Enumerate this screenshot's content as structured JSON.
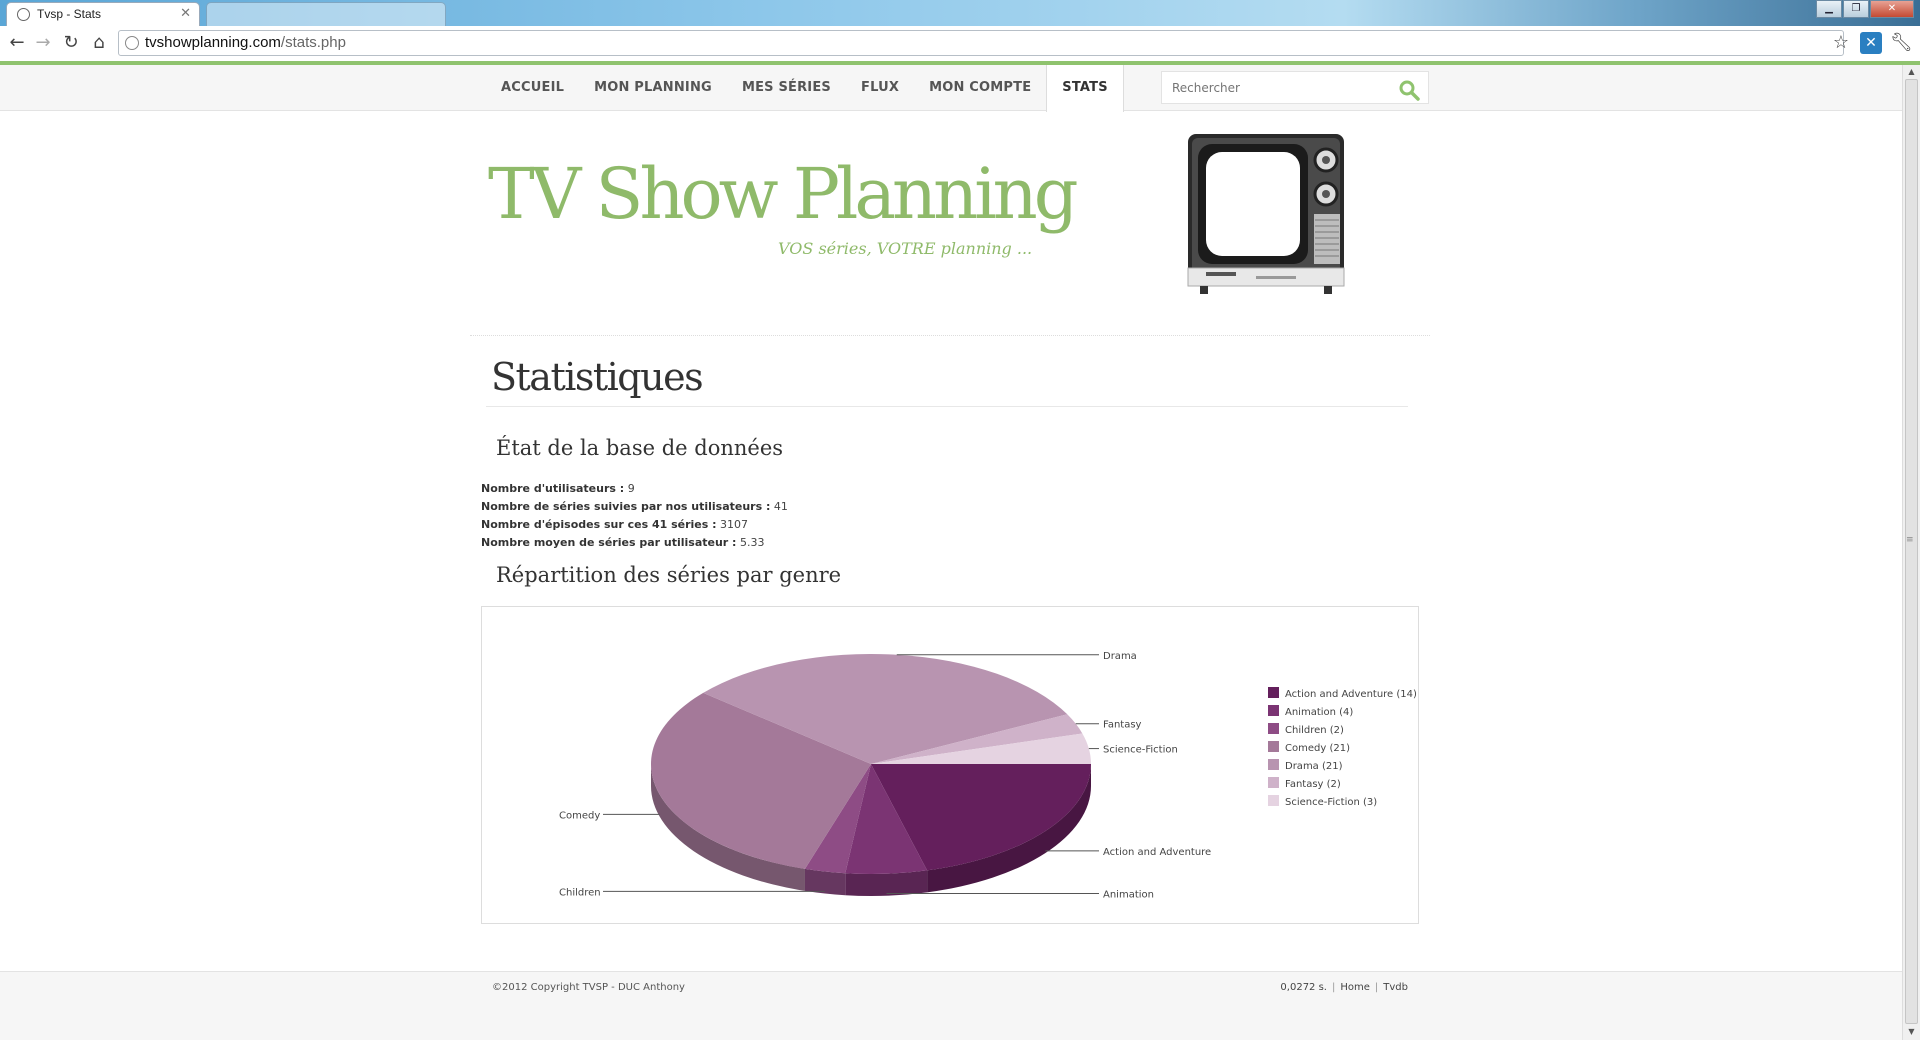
{
  "browser": {
    "tab_active_title": "Tvsp - Stats",
    "tab_inactive_title": "",
    "url_host": "tvshowplanning.com",
    "url_path": "/stats.php"
  },
  "nav": {
    "items": [
      "ACCUEIL",
      "MON PLANNING",
      "MES SÉRIES",
      "FLUX",
      "MON COMPTE",
      "STATS"
    ],
    "active": "STATS",
    "search_placeholder": "Rechercher"
  },
  "header": {
    "title": "TV Show Planning",
    "tagline": "VOS séries, VOTRE planning ..."
  },
  "page": {
    "title": "Statistiques",
    "db_section_title": "État de la base de données",
    "stats": [
      {
        "label": "Nombre d'utilisateurs :",
        "value": "9"
      },
      {
        "label": "Nombre de séries suivies par nos utilisateurs :",
        "value": "41"
      },
      {
        "label": "Nombre d'épisodes sur ces 41 séries :",
        "value": "3107"
      },
      {
        "label": "Nombre moyen de séries par utilisateur :",
        "value": "5.33"
      }
    ],
    "genre_section_title": "Répartition des séries par genre"
  },
  "chart_data": {
    "type": "pie",
    "title": "Répartition des séries par genre",
    "categories": [
      "Action and Adventure",
      "Animation",
      "Children",
      "Comedy",
      "Drama",
      "Fantasy",
      "Science-Fiction"
    ],
    "values": [
      14,
      4,
      2,
      21,
      21,
      2,
      3
    ],
    "legend": [
      "Action and Adventure (14)",
      "Animation (4)",
      "Children (2)",
      "Comedy (21)",
      "Drama (21)",
      "Fantasy (2)",
      "Science-Fiction (3)"
    ],
    "colors": [
      "#641f5c",
      "#7b3473",
      "#8e4c85",
      "#a47999",
      "#b894b0",
      "#cfb2c9",
      "#e5d3e1"
    ],
    "legend_position": "right"
  },
  "footer": {
    "copyright": "©2012 Copyright TVSP - DUC Anthony",
    "time": "0,0272 s.",
    "links": [
      "Home",
      "Tvdb"
    ]
  },
  "colors": {
    "accent_green": "#8fba6a",
    "chrome_green": "#8fc36e"
  }
}
